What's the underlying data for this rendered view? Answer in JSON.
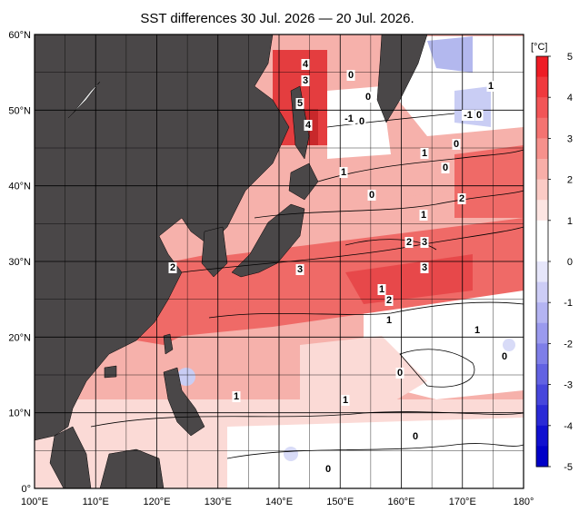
{
  "title": "SST differences 30 Jul. 2026 — 20 Jul. 2026.",
  "unit_label": "[°C]",
  "lon_ticks": [
    "100°E",
    "110°E",
    "120°E",
    "130°E",
    "140°E",
    "150°E",
    "160°E",
    "170°E",
    "180°"
  ],
  "lat_ticks": [
    "0°",
    "10°N",
    "20°N",
    "30°N",
    "40°N",
    "50°N",
    "60°N"
  ],
  "colorbar": {
    "labels": [
      "5",
      "4",
      "3",
      "2",
      "1",
      "0",
      "-1",
      "-2",
      "-3",
      "-4",
      "-5"
    ],
    "colors_top_to_bottom": [
      "#ee1c25",
      "#f0393e",
      "#f25557",
      "#f47371",
      "#f6918c",
      "#f8aea8",
      "#fbcbc5",
      "#fde5e2",
      "#ffffff",
      "#ffffff",
      "#e6e6fa",
      "#cdcdf6",
      "#b4b4f2",
      "#9a9aee",
      "#7e7ee8",
      "#6262e2",
      "#4646dc",
      "#2a2ad6",
      "#1010d0",
      "#0000c8"
    ]
  },
  "contour_labels": [
    "4",
    "3",
    "5",
    "4",
    "0",
    "-1",
    "0",
    "0",
    "-1",
    "0",
    "1",
    "1",
    "0",
    "0",
    "1",
    "0",
    "1",
    "2",
    "1",
    "2",
    "3",
    "3",
    "2",
    "3",
    "2",
    "1",
    "1",
    "0",
    "0",
    "1",
    "1",
    "0",
    "0"
  ],
  "colors": {
    "land": "#4a4748",
    "ocean_base": "#f6b1ab",
    "grid": "#000000"
  }
}
